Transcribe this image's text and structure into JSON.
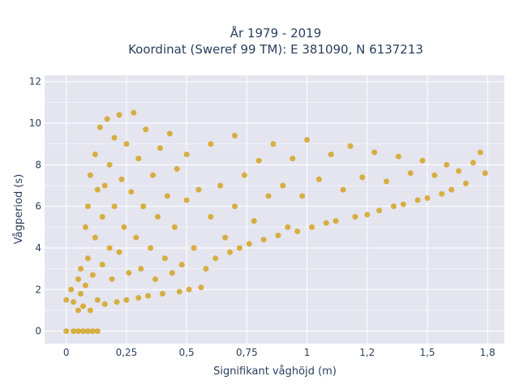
{
  "chart_data": {
    "type": "scatter",
    "title_lines": [
      "År 1979 - 2019",
      "Koordinat (Sweref 99 TM): E 381090, N 6137213"
    ],
    "xlabel": "Signifikant våghöjd (m)",
    "ylabel": "Vågperiod (s)",
    "xlim": [
      -0.09,
      1.82
    ],
    "ylim": [
      -0.6,
      12.3
    ],
    "x_ticks": [
      0,
      0.25,
      0.5,
      0.75,
      1,
      1.25,
      1.5,
      1.75
    ],
    "x_tick_labels": [
      "0",
      "0,25",
      "0,5",
      "0,75",
      "1",
      "1,2",
      "1,5",
      "1,8"
    ],
    "y_ticks": [
      0,
      2,
      4,
      6,
      8,
      10,
      12
    ],
    "y_tick_labels": [
      "0",
      "2",
      "4",
      "6",
      "8",
      "10",
      "12"
    ],
    "grid": true,
    "legend": "none",
    "marker_color": "#d4a521",
    "plot_bg": "#e5e5f0",
    "series": [
      {
        "points": [
          [
            0.0,
            0
          ],
          [
            0.03,
            0
          ],
          [
            0.05,
            0
          ],
          [
            0.07,
            0
          ],
          [
            0.09,
            0
          ],
          [
            0.11,
            0
          ],
          [
            0.13,
            0
          ],
          [
            0.0,
            1.5
          ],
          [
            0.02,
            2.0
          ],
          [
            0.03,
            1.4
          ],
          [
            0.05,
            1.0
          ],
          [
            0.05,
            2.5
          ],
          [
            0.06,
            3.0
          ],
          [
            0.06,
            1.8
          ],
          [
            0.07,
            1.2
          ],
          [
            0.08,
            2.2
          ],
          [
            0.08,
            5.0
          ],
          [
            0.09,
            6.0
          ],
          [
            0.09,
            3.5
          ],
          [
            0.1,
            1.0
          ],
          [
            0.1,
            7.5
          ],
          [
            0.11,
            2.7
          ],
          [
            0.12,
            4.5
          ],
          [
            0.12,
            8.5
          ],
          [
            0.13,
            6.8
          ],
          [
            0.13,
            1.5
          ],
          [
            0.14,
            9.8
          ],
          [
            0.15,
            5.5
          ],
          [
            0.15,
            3.2
          ],
          [
            0.16,
            7.0
          ],
          [
            0.16,
            1.3
          ],
          [
            0.17,
            10.2
          ],
          [
            0.18,
            4.0
          ],
          [
            0.18,
            8.0
          ],
          [
            0.19,
            2.5
          ],
          [
            0.2,
            6.0
          ],
          [
            0.2,
            9.3
          ],
          [
            0.21,
            1.4
          ],
          [
            0.22,
            3.8
          ],
          [
            0.22,
            10.4
          ],
          [
            0.23,
            7.3
          ],
          [
            0.24,
            5.0
          ],
          [
            0.25,
            1.5
          ],
          [
            0.25,
            9.0
          ],
          [
            0.26,
            2.8
          ],
          [
            0.27,
            6.7
          ],
          [
            0.28,
            10.5
          ],
          [
            0.29,
            4.5
          ],
          [
            0.3,
            1.6
          ],
          [
            0.3,
            8.3
          ],
          [
            0.31,
            3.0
          ],
          [
            0.32,
            6.0
          ],
          [
            0.33,
            9.7
          ],
          [
            0.34,
            1.7
          ],
          [
            0.35,
            4.0
          ],
          [
            0.36,
            7.5
          ],
          [
            0.37,
            2.5
          ],
          [
            0.38,
            5.5
          ],
          [
            0.39,
            8.8
          ],
          [
            0.4,
            1.8
          ],
          [
            0.41,
            3.5
          ],
          [
            0.42,
            6.5
          ],
          [
            0.43,
            9.5
          ],
          [
            0.44,
            2.8
          ],
          [
            0.45,
            5.0
          ],
          [
            0.46,
            7.8
          ],
          [
            0.47,
            1.9
          ],
          [
            0.48,
            3.2
          ],
          [
            0.5,
            6.3
          ],
          [
            0.5,
            8.5
          ],
          [
            0.51,
            2.0
          ],
          [
            0.53,
            4.0
          ],
          [
            0.55,
            6.8
          ],
          [
            0.56,
            2.1
          ],
          [
            0.58,
            3.0
          ],
          [
            0.6,
            5.5
          ],
          [
            0.6,
            9.0
          ],
          [
            0.62,
            3.5
          ],
          [
            0.64,
            7.0
          ],
          [
            0.66,
            4.5
          ],
          [
            0.68,
            3.8
          ],
          [
            0.7,
            6.0
          ],
          [
            0.7,
            9.4
          ],
          [
            0.72,
            4.0
          ],
          [
            0.74,
            7.5
          ],
          [
            0.76,
            4.2
          ],
          [
            0.78,
            5.3
          ],
          [
            0.8,
            8.2
          ],
          [
            0.82,
            4.4
          ],
          [
            0.84,
            6.5
          ],
          [
            0.86,
            9.0
          ],
          [
            0.88,
            4.6
          ],
          [
            0.9,
            7.0
          ],
          [
            0.92,
            5.0
          ],
          [
            0.94,
            8.3
          ],
          [
            0.96,
            4.8
          ],
          [
            0.98,
            6.5
          ],
          [
            1.0,
            9.2
          ],
          [
            1.02,
            5.0
          ],
          [
            1.05,
            7.3
          ],
          [
            1.08,
            5.2
          ],
          [
            1.1,
            8.5
          ],
          [
            1.12,
            5.3
          ],
          [
            1.15,
            6.8
          ],
          [
            1.18,
            8.9
          ],
          [
            1.2,
            5.5
          ],
          [
            1.23,
            7.4
          ],
          [
            1.25,
            5.6
          ],
          [
            1.28,
            8.6
          ],
          [
            1.3,
            5.8
          ],
          [
            1.33,
            7.2
          ],
          [
            1.36,
            6.0
          ],
          [
            1.38,
            8.4
          ],
          [
            1.4,
            6.1
          ],
          [
            1.43,
            7.6
          ],
          [
            1.46,
            6.3
          ],
          [
            1.48,
            8.2
          ],
          [
            1.5,
            6.4
          ],
          [
            1.53,
            7.5
          ],
          [
            1.56,
            6.6
          ],
          [
            1.58,
            8.0
          ],
          [
            1.6,
            6.8
          ],
          [
            1.63,
            7.7
          ],
          [
            1.66,
            7.1
          ],
          [
            1.69,
            8.1
          ],
          [
            1.72,
            8.6
          ],
          [
            1.74,
            7.6
          ]
        ]
      }
    ]
  }
}
